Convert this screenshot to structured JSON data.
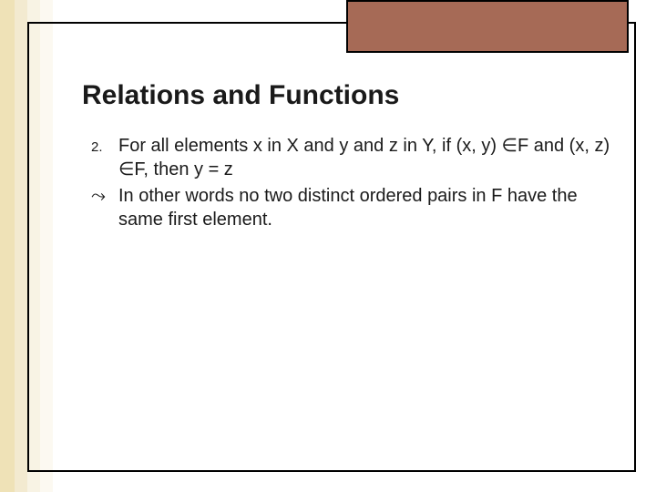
{
  "slide": {
    "title": "Relations and Functions",
    "items": [
      {
        "marker": "2.",
        "text": "For all elements x in X and y and z in Y, if (x, y) ∈F and (x, z) ∈F, then  y = z"
      },
      {
        "marker": "⤳",
        "text": "In other words no two distinct ordered pairs in F have the same first element."
      }
    ]
  },
  "style": {
    "left_band_colors": [
      "#efe2b7",
      "#f3ead0",
      "#f8f3e4",
      "#fcf9f1"
    ],
    "left_band_widths": [
      16,
      14,
      14,
      14
    ],
    "decor_box_fill": "#a66a56",
    "frame_border": "#000000",
    "background": "#ffffff",
    "title_fontsize": 30,
    "body_fontsize": 20,
    "number_fontsize": 15,
    "text_color": "#1a1a1a"
  }
}
